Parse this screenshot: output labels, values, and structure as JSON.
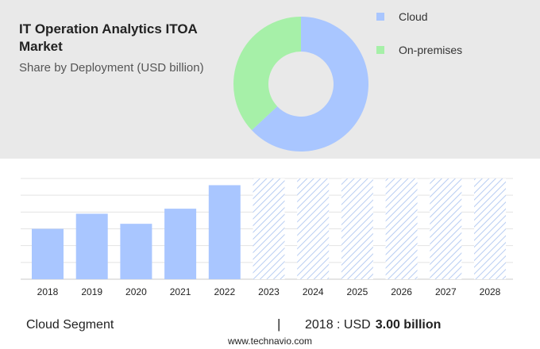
{
  "header": {
    "title": "IT Operation Analytics ITOA Market",
    "subtitle": "Share by Deployment (USD billion)"
  },
  "colors": {
    "cloud": "#a9c6ff",
    "on_premises": "#a6f0a8",
    "hatch": "#b8cdf2",
    "panel": "#e9e9e9"
  },
  "chart_data": [
    {
      "type": "pie",
      "donut": true,
      "legend": [
        "Cloud",
        "On-premises"
      ],
      "values": [
        63,
        37
      ],
      "legend_position": "top-right"
    },
    {
      "type": "bar",
      "categories": [
        "2018",
        "2019",
        "2020",
        "2021",
        "2022",
        "2023",
        "2024",
        "2025",
        "2026",
        "2027",
        "2028"
      ],
      "series": [
        {
          "values": [
            3.0,
            3.9,
            3.3,
            4.2,
            5.6,
            null,
            null,
            null,
            null,
            null,
            null
          ]
        }
      ],
      "forecast_categories": [
        "2023",
        "2024",
        "2025",
        "2026",
        "2027",
        "2028"
      ],
      "ylim": [
        0,
        6.0
      ],
      "grid": true
    }
  ],
  "footer": {
    "segment": "Cloud Segment",
    "separator": "|",
    "year_label": "2018 : USD",
    "value": "3.00 billion",
    "website": "www.technavio.com"
  }
}
